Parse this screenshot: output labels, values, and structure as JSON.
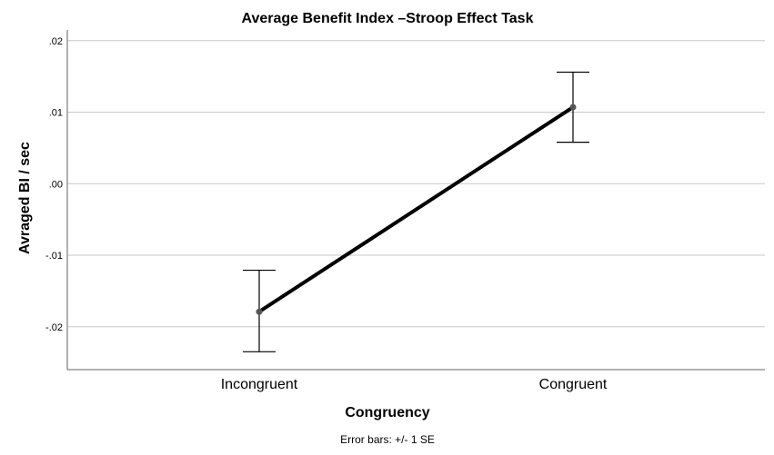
{
  "chart_data": {
    "type": "line",
    "title": "Average Benefit Index –Stroop Effect Task",
    "xlabel": "Congruency",
    "ylabel": "Avraged BI / sec",
    "categories": [
      "Incongruent",
      "Congruent"
    ],
    "series": [
      {
        "values": [
          -0.0179,
          0.0107
        ],
        "error_low": [
          -0.0235,
          0.0058
        ],
        "error_high": [
          -0.0121,
          0.0156
        ]
      }
    ],
    "ylim": [
      -0.026,
      0.0215
    ],
    "yticks": [
      -0.02,
      -0.01,
      0.0,
      0.01,
      0.02
    ],
    "ytick_labels": [
      "-.02",
      "-.01",
      ".00",
      ".01",
      ".02"
    ],
    "grid": true,
    "note": "Error bars: +/- 1 SE",
    "colors": {
      "line": "#000000",
      "marker": "#555555",
      "grid": "#c8c8c8",
      "axis": "#666666"
    }
  }
}
